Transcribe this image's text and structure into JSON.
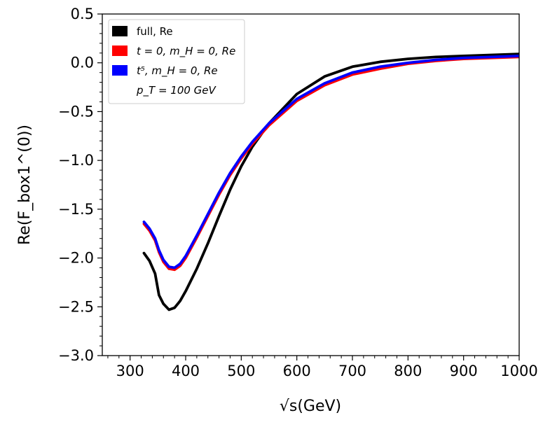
{
  "chart_data": {
    "type": "line",
    "xlabel": "√s(GeV)",
    "ylabel": "Re(F_box1^(0))",
    "xlim": [
      250,
      1000
    ],
    "ylim": [
      -3.0,
      0.5
    ],
    "x_ticks": [
      300,
      400,
      500,
      600,
      700,
      800,
      900,
      1000
    ],
    "x_tick_labels": [
      "300",
      "400",
      "500",
      "600",
      "700",
      "800",
      "900",
      "1000"
    ],
    "y_ticks": [
      0.5,
      0.0,
      -0.5,
      -1.0,
      -1.5,
      -2.0,
      -2.5,
      -3.0
    ],
    "y_tick_labels": [
      "0.5",
      "0.0",
      "−0.5",
      "−1.0",
      "−1.5",
      "−2.0",
      "−2.5",
      "−3.0"
    ],
    "grid": false,
    "legend_position": "top-left",
    "annotation": "p_T = 100 GeV",
    "series": [
      {
        "name": "full, Re",
        "color": "#000000",
        "x": [
          325,
          335,
          345,
          352,
          360,
          370,
          380,
          390,
          400,
          420,
          440,
          460,
          480,
          500,
          520,
          550,
          600,
          650,
          700,
          750,
          800,
          850,
          900,
          950,
          1000
        ],
        "y": [
          -1.95,
          -2.03,
          -2.16,
          -2.38,
          -2.47,
          -2.53,
          -2.51,
          -2.44,
          -2.34,
          -2.11,
          -1.85,
          -1.57,
          -1.3,
          -1.06,
          -0.86,
          -0.62,
          -0.32,
          -0.14,
          -0.04,
          0.01,
          0.04,
          0.06,
          0.07,
          0.08,
          0.09
        ]
      },
      {
        "name": "t = 0, m_H = 0, Re",
        "color": "#ff0000",
        "x": [
          325,
          335,
          345,
          352,
          360,
          370,
          380,
          390,
          400,
          420,
          440,
          460,
          480,
          500,
          520,
          550,
          600,
          650,
          700,
          750,
          800,
          850,
          900,
          950,
          1000
        ],
        "y": [
          -1.65,
          -1.72,
          -1.82,
          -1.94,
          -2.04,
          -2.11,
          -2.12,
          -2.08,
          -2.0,
          -1.79,
          -1.57,
          -1.35,
          -1.15,
          -0.98,
          -0.83,
          -0.64,
          -0.39,
          -0.23,
          -0.12,
          -0.06,
          -0.01,
          0.02,
          0.04,
          0.05,
          0.06
        ]
      },
      {
        "name": "t⁵, m_H = 0, Re",
        "color": "#0000ff",
        "x": [
          325,
          335,
          345,
          352,
          360,
          370,
          380,
          390,
          400,
          420,
          440,
          460,
          480,
          500,
          520,
          550,
          600,
          650,
          700,
          750,
          800,
          850,
          900,
          950,
          1000
        ],
        "y": [
          -1.63,
          -1.7,
          -1.8,
          -1.92,
          -2.02,
          -2.09,
          -2.1,
          -2.06,
          -1.98,
          -1.77,
          -1.55,
          -1.33,
          -1.13,
          -0.96,
          -0.81,
          -0.62,
          -0.37,
          -0.21,
          -0.1,
          -0.04,
          0.0,
          0.03,
          0.05,
          0.06,
          0.07
        ]
      }
    ]
  }
}
